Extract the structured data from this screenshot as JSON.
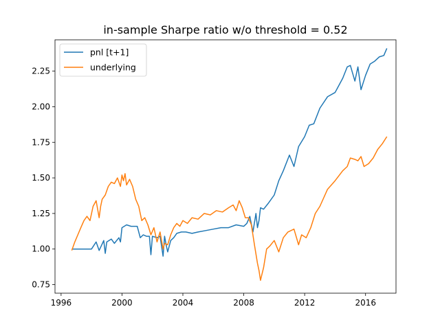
{
  "chart_data": {
    "type": "line",
    "title": "in-sample Sharpe ratio w/o threshold = 0.52",
    "xlabel": "",
    "ylabel": "",
    "xlim": [
      1995.6,
      2018.0
    ],
    "ylim": [
      0.69,
      2.47
    ],
    "x_ticks": [
      1996,
      2000,
      2004,
      2008,
      2012,
      2016
    ],
    "x_tick_labels": [
      "1996",
      "2000",
      "2004",
      "2008",
      "2012",
      "2016"
    ],
    "y_ticks": [
      0.75,
      1.0,
      1.25,
      1.5,
      1.75,
      2.0,
      2.25
    ],
    "y_tick_labels": [
      "0.75",
      "1.00",
      "1.25",
      "1.50",
      "1.75",
      "2.00",
      "2.25"
    ],
    "grid": false,
    "legend_position": "upper-left",
    "series": [
      {
        "name": "pnl [t+1]",
        "color": "#1f77b4",
        "x": [
          1996.7,
          1997.0,
          1997.5,
          1998.0,
          1998.3,
          1998.5,
          1998.8,
          1998.9,
          1999.0,
          1999.3,
          1999.5,
          1999.8,
          1999.9,
          2000.0,
          2000.3,
          2000.6,
          2001.0,
          2001.2,
          2001.4,
          2001.6,
          2001.8,
          2001.9,
          2002.0,
          2002.3,
          2002.5,
          2002.7,
          2002.8,
          2002.9,
          2003.0,
          2003.2,
          2003.4,
          2003.6,
          2003.9,
          2004.2,
          2004.6,
          2005.0,
          2005.5,
          2006.0,
          2006.5,
          2007.0,
          2007.5,
          2008.0,
          2008.2,
          2008.4,
          2008.6,
          2008.8,
          2008.9,
          2009.0,
          2009.1,
          2009.3,
          2009.6,
          2010.0,
          2010.3,
          2010.6,
          2011.0,
          2011.3,
          2011.6,
          2012.0,
          2012.3,
          2012.6,
          2013.0,
          2013.5,
          2014.0,
          2014.5,
          2014.8,
          2015.0,
          2015.3,
          2015.5,
          2015.7,
          2016.0,
          2016.3,
          2016.6,
          2016.9,
          2017.2,
          2017.4
        ],
        "values": [
          1.0,
          1.0,
          1.0,
          1.0,
          1.05,
          0.99,
          1.06,
          0.97,
          1.05,
          1.07,
          1.04,
          1.08,
          1.05,
          1.15,
          1.17,
          1.16,
          1.16,
          1.08,
          1.1,
          1.09,
          1.09,
          0.96,
          1.09,
          1.08,
          1.09,
          0.95,
          1.09,
          1.03,
          0.98,
          1.06,
          1.08,
          1.11,
          1.12,
          1.12,
          1.11,
          1.12,
          1.13,
          1.14,
          1.15,
          1.15,
          1.17,
          1.16,
          1.18,
          1.23,
          1.12,
          1.25,
          1.15,
          1.2,
          1.29,
          1.28,
          1.32,
          1.38,
          1.48,
          1.55,
          1.66,
          1.58,
          1.72,
          1.79,
          1.87,
          1.88,
          1.99,
          2.07,
          2.1,
          2.2,
          2.28,
          2.29,
          2.18,
          2.28,
          2.12,
          2.22,
          2.3,
          2.32,
          2.35,
          2.36,
          2.41
        ]
      },
      {
        "name": "underlying",
        "color": "#ff7f0e",
        "x": [
          1996.7,
          1996.9,
          1997.1,
          1997.3,
          1997.5,
          1997.7,
          1997.9,
          1998.1,
          1998.3,
          1998.5,
          1998.6,
          1998.7,
          1998.9,
          1999.1,
          1999.3,
          1999.5,
          1999.7,
          1999.9,
          2000.0,
          2000.1,
          2000.2,
          2000.3,
          2000.5,
          2000.7,
          2000.9,
          2001.1,
          2001.3,
          2001.5,
          2001.7,
          2001.9,
          2002.1,
          2002.3,
          2002.5,
          2002.7,
          2002.8,
          2003.0,
          2003.2,
          2003.4,
          2003.6,
          2003.8,
          2004.0,
          2004.3,
          2004.6,
          2005.0,
          2005.4,
          2005.8,
          2006.2,
          2006.6,
          2007.0,
          2007.3,
          2007.5,
          2007.7,
          2007.9,
          2008.1,
          2008.3,
          2008.5,
          2008.7,
          2008.9,
          2009.0,
          2009.1,
          2009.3,
          2009.5,
          2009.7,
          2010.0,
          2010.3,
          2010.6,
          2010.9,
          2011.3,
          2011.6,
          2011.8,
          2012.1,
          2012.4,
          2012.7,
          2013.0,
          2013.5,
          2014.0,
          2014.5,
          2014.8,
          2015.0,
          2015.3,
          2015.5,
          2015.7,
          2015.9,
          2016.2,
          2016.5,
          2016.8,
          2017.1,
          2017.4
        ],
        "values": [
          0.99,
          1.05,
          1.1,
          1.15,
          1.2,
          1.23,
          1.2,
          1.3,
          1.34,
          1.22,
          1.3,
          1.35,
          1.38,
          1.44,
          1.47,
          1.46,
          1.5,
          1.44,
          1.52,
          1.48,
          1.53,
          1.45,
          1.49,
          1.44,
          1.35,
          1.3,
          1.2,
          1.22,
          1.17,
          1.1,
          1.15,
          1.05,
          1.12,
          1.0,
          1.04,
          1.03,
          1.1,
          1.15,
          1.18,
          1.16,
          1.2,
          1.18,
          1.22,
          1.21,
          1.25,
          1.24,
          1.27,
          1.26,
          1.29,
          1.31,
          1.27,
          1.34,
          1.29,
          1.22,
          1.22,
          1.17,
          1.03,
          0.9,
          0.85,
          0.78,
          0.87,
          1.0,
          1.02,
          1.06,
          0.98,
          1.08,
          1.12,
          1.14,
          1.03,
          1.1,
          1.08,
          1.15,
          1.25,
          1.3,
          1.42,
          1.48,
          1.55,
          1.58,
          1.64,
          1.63,
          1.62,
          1.65,
          1.58,
          1.6,
          1.64,
          1.7,
          1.74,
          1.79
        ]
      }
    ]
  }
}
